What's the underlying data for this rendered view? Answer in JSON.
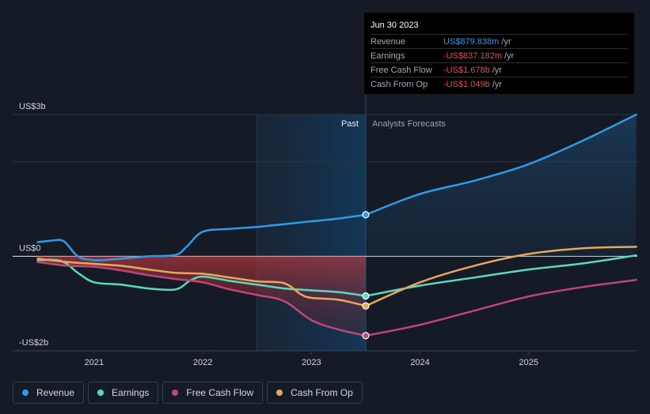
{
  "chart_data": {
    "type": "line",
    "y_unit": "US$",
    "ylim": [
      -2,
      3
    ],
    "y_labels": [
      {
        "value": 3,
        "text": "US$3b"
      },
      {
        "value": 0,
        "text": "US$0"
      },
      {
        "value": -2,
        "text": "-US$2b"
      }
    ],
    "x_ticks": [
      {
        "value": 2021,
        "text": "2021"
      },
      {
        "value": 2022,
        "text": "2022"
      },
      {
        "value": 2023,
        "text": "2023"
      },
      {
        "value": 2024,
        "text": "2024"
      },
      {
        "value": 2025,
        "text": "2025"
      }
    ],
    "xlim": [
      2020.25,
      2026.0
    ],
    "past_region_start": 2022.5,
    "forecast_start": 2023.5,
    "section_labels": {
      "past": "Past",
      "forecast": "Analysts Forecasts"
    },
    "series": [
      {
        "name": "Revenue",
        "color": "#2f9ae8",
        "points": [
          [
            2020.48,
            0.3
          ],
          [
            2020.6,
            0.33
          ],
          [
            2020.72,
            0.32
          ],
          [
            2020.85,
            0.0
          ],
          [
            2021.0,
            -0.08
          ],
          [
            2021.2,
            -0.06
          ],
          [
            2021.5,
            0.0
          ],
          [
            2021.75,
            0.03
          ],
          [
            2021.85,
            0.2
          ],
          [
            2022.0,
            0.52
          ],
          [
            2022.25,
            0.58
          ],
          [
            2022.5,
            0.62
          ],
          [
            2022.75,
            0.68
          ],
          [
            2023.0,
            0.74
          ],
          [
            2023.25,
            0.8
          ],
          [
            2023.5,
            0.88
          ]
        ],
        "forecast": [
          [
            2023.5,
            0.88
          ],
          [
            2024.0,
            1.32
          ],
          [
            2024.5,
            1.6
          ],
          [
            2025.0,
            1.95
          ],
          [
            2025.5,
            2.45
          ],
          [
            2025.99,
            3.0
          ]
        ]
      },
      {
        "name": "Earnings",
        "color": "#5ad8c0",
        "points": [
          [
            2020.48,
            -0.08
          ],
          [
            2020.7,
            -0.1
          ],
          [
            2020.85,
            -0.35
          ],
          [
            2021.0,
            -0.55
          ],
          [
            2021.25,
            -0.6
          ],
          [
            2021.5,
            -0.68
          ],
          [
            2021.75,
            -0.7
          ],
          [
            2021.88,
            -0.52
          ],
          [
            2022.0,
            -0.43
          ],
          [
            2022.25,
            -0.52
          ],
          [
            2022.5,
            -0.6
          ],
          [
            2022.75,
            -0.68
          ],
          [
            2023.0,
            -0.72
          ],
          [
            2023.25,
            -0.76
          ],
          [
            2023.5,
            -0.84
          ]
        ],
        "forecast": [
          [
            2023.5,
            -0.84
          ],
          [
            2024.0,
            -0.62
          ],
          [
            2024.5,
            -0.45
          ],
          [
            2025.0,
            -0.28
          ],
          [
            2025.5,
            -0.15
          ],
          [
            2025.99,
            0.02
          ]
        ]
      },
      {
        "name": "Free Cash Flow",
        "color": "#c0457a",
        "points": [
          [
            2020.48,
            -0.12
          ],
          [
            2020.75,
            -0.2
          ],
          [
            2021.0,
            -0.22
          ],
          [
            2021.25,
            -0.3
          ],
          [
            2021.5,
            -0.4
          ],
          [
            2021.75,
            -0.48
          ],
          [
            2022.0,
            -0.55
          ],
          [
            2022.25,
            -0.7
          ],
          [
            2022.5,
            -0.82
          ],
          [
            2022.75,
            -0.95
          ],
          [
            2023.0,
            -1.35
          ],
          [
            2023.25,
            -1.55
          ],
          [
            2023.5,
            -1.68
          ]
        ],
        "forecast": [
          [
            2023.5,
            -1.68
          ],
          [
            2024.0,
            -1.45
          ],
          [
            2024.5,
            -1.15
          ],
          [
            2025.0,
            -0.85
          ],
          [
            2025.5,
            -0.65
          ],
          [
            2025.99,
            -0.5
          ]
        ]
      },
      {
        "name": "Cash From Op",
        "color": "#e6a85a",
        "points": [
          [
            2020.48,
            -0.05
          ],
          [
            2020.75,
            -0.12
          ],
          [
            2021.0,
            -0.16
          ],
          [
            2021.25,
            -0.2
          ],
          [
            2021.5,
            -0.28
          ],
          [
            2021.75,
            -0.35
          ],
          [
            2022.0,
            -0.37
          ],
          [
            2022.25,
            -0.45
          ],
          [
            2022.5,
            -0.53
          ],
          [
            2022.75,
            -0.57
          ],
          [
            2022.9,
            -0.8
          ],
          [
            2023.0,
            -0.88
          ],
          [
            2023.25,
            -0.92
          ],
          [
            2023.5,
            -1.05
          ]
        ],
        "forecast": [
          [
            2023.5,
            -1.05
          ],
          [
            2024.0,
            -0.55
          ],
          [
            2024.5,
            -0.2
          ],
          [
            2025.0,
            0.05
          ],
          [
            2025.5,
            0.17
          ],
          [
            2025.99,
            0.2
          ]
        ]
      }
    ]
  },
  "tooltip": {
    "date": "Jun 30 2023",
    "rows": [
      {
        "label": "Revenue",
        "value": "US$879.838m",
        "unit": "/yr",
        "color": "#2f9ae8"
      },
      {
        "label": "Earnings",
        "value": "-US$837.182m",
        "unit": "/yr",
        "color": "#e8484f"
      },
      {
        "label": "Free Cash Flow",
        "value": "-US$1.678b",
        "unit": "/yr",
        "color": "#e8484f"
      },
      {
        "label": "Cash From Op",
        "value": "-US$1.049b",
        "unit": "/yr",
        "color": "#e8484f"
      }
    ]
  },
  "legend": [
    {
      "label": "Revenue",
      "color": "#2f9ae8"
    },
    {
      "label": "Earnings",
      "color": "#5ad8c0"
    },
    {
      "label": "Free Cash Flow",
      "color": "#c0457a"
    },
    {
      "label": "Cash From Op",
      "color": "#e6a85a"
    }
  ]
}
